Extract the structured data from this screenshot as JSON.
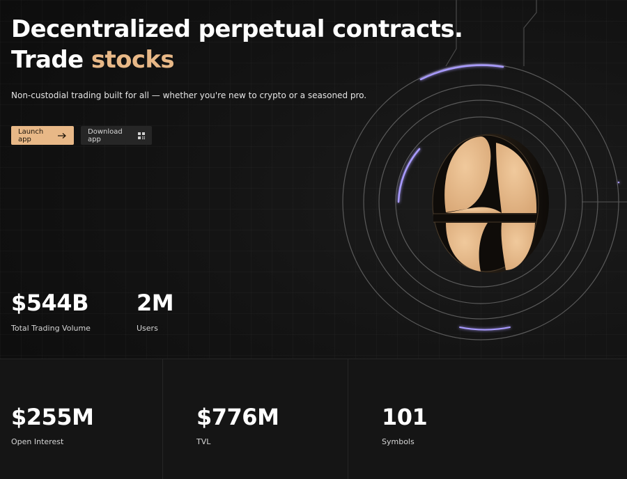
{
  "hero": {
    "title_line1": "Decentralized perpetual contracts.",
    "title_prefix": "Trade ",
    "title_accent": "stocks",
    "subtitle": "Non-custodial trading built for all — whether you're new to crypto or a seasoned pro.",
    "launch_label": "Launch app",
    "download_label": "Download app"
  },
  "stats_top": [
    {
      "value": "$544B",
      "label": "Total Trading Volume"
    },
    {
      "value": "2M",
      "label": "Users"
    }
  ],
  "stats_bottom": [
    {
      "value": "$255M",
      "label": "Open Interest"
    },
    {
      "value": "$776M",
      "label": "TVL"
    },
    {
      "value": "101",
      "label": "Symbols"
    }
  ],
  "colors": {
    "accent": "#e8b887",
    "background": "#0d0d0d",
    "ring_glow": "#9a8cff"
  },
  "icons": {
    "launch": "arrow-right-icon",
    "download": "qr-code-icon",
    "logo": "coin-logo-icon"
  }
}
